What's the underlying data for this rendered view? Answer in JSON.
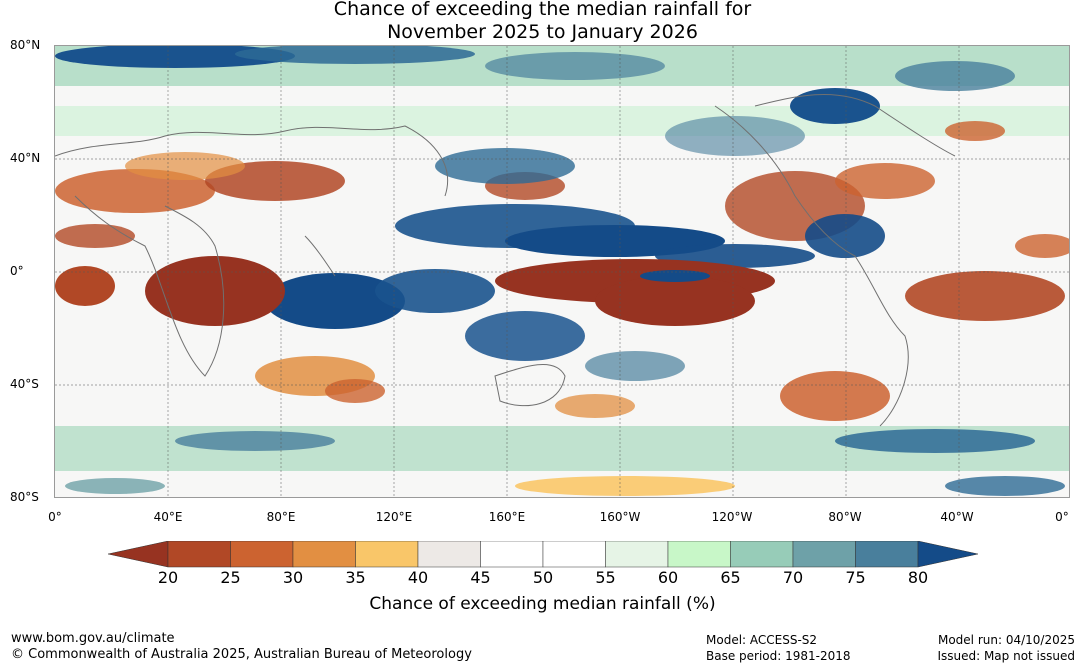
{
  "title": {
    "line1": "Chance of exceeding the median rainfall for",
    "line2": "November 2025 to January 2026"
  },
  "latitude_labels": [
    "80°N",
    "40°N",
    "0°",
    "40°S",
    "80°S"
  ],
  "longitude_labels": [
    "0°",
    "40°E",
    "80°E",
    "120°E",
    "160°E",
    "160°W",
    "120°W",
    "80°W",
    "40°W",
    "0°"
  ],
  "legend": {
    "ticks": [
      "20",
      "25",
      "30",
      "35",
      "40",
      "45",
      "50",
      "55",
      "60",
      "65",
      "70",
      "75",
      "80"
    ],
    "colors": [
      "#973321",
      "#b14826",
      "#cc6330",
      "#e28f42",
      "#f9c669",
      "#ede9e6",
      "#ffffff",
      "#ffffff",
      "#e6f4e6",
      "#c8f7c8",
      "#97ccb8",
      "#6ea1a8",
      "#497f9c",
      "#144b88"
    ],
    "label": "Chance of exceeding median rainfall (%)"
  },
  "footer": {
    "website": "www.bom.gov.au/climate",
    "copyright": "© Commonwealth of Australia 2025, Australian Bureau of Meteorology",
    "model": "Model: ACCESS-S2",
    "base_period": "Base period: 1981-2018",
    "model_run": "Model run: 04/10/2025",
    "issued": "Issued: Map not issued"
  }
}
